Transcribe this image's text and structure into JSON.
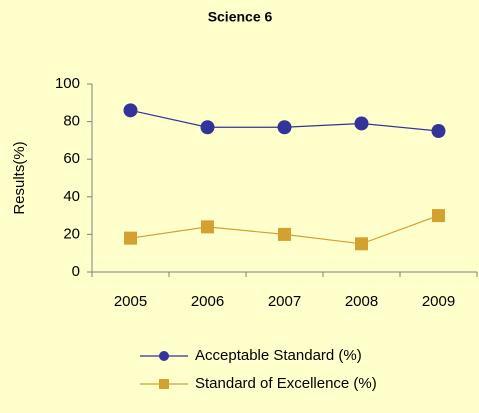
{
  "chart_data": {
    "type": "line",
    "title": "Science 6",
    "y_label": "Results(%)",
    "categories": [
      "2005",
      "2006",
      "2007",
      "2008",
      "2009"
    ],
    "series": [
      {
        "name": "Acceptable Standard (%)",
        "color": "#333399",
        "marker": "circle",
        "values": [
          86,
          77,
          77,
          79,
          75
        ]
      },
      {
        "name": "Standard of Excellence (%)",
        "color": "#d4a030",
        "marker": "square",
        "values": [
          18,
          24,
          20,
          15,
          30
        ]
      }
    ],
    "ylim": [
      0,
      100
    ],
    "yticks": [
      0,
      20,
      40,
      60,
      80,
      100
    ],
    "grid": false,
    "legend": "bottom"
  }
}
